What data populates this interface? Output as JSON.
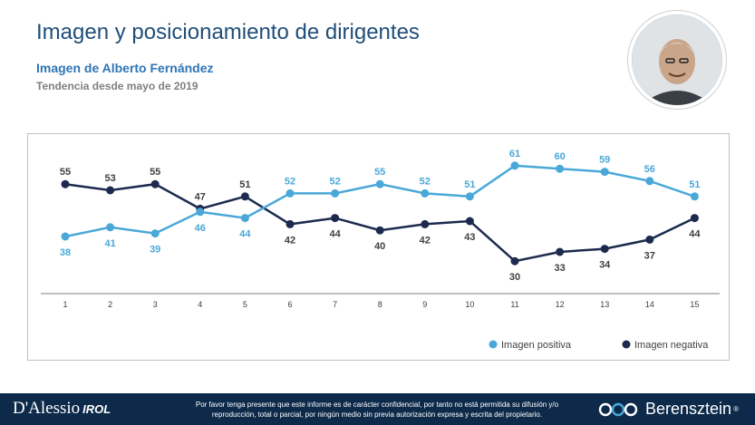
{
  "header": {
    "title": "Imagen y posicionamiento de dirigentes",
    "subtitle": "Imagen de Alberto Fernández",
    "subsubtitle": "Tendencia desde mayo de 2019"
  },
  "chart_data": {
    "type": "line",
    "x": [
      1,
      2,
      3,
      4,
      5,
      6,
      7,
      8,
      9,
      10,
      11,
      12,
      13,
      14,
      15
    ],
    "series": [
      {
        "name": "Imagen positiva",
        "color": "#4aa8d8",
        "values": [
          38,
          41,
          39,
          46,
          44,
          52,
          52,
          55,
          52,
          51,
          61,
          60,
          59,
          56,
          51
        ]
      },
      {
        "name": "Imagen negativa",
        "color": "#1c2a4e",
        "values": [
          55,
          53,
          55,
          47,
          51,
          42,
          44,
          40,
          42,
          43,
          30,
          33,
          34,
          37,
          44
        ]
      }
    ],
    "legend": "bottom-right",
    "grid": false
  },
  "footer": {
    "brand_left": "D'Alessio",
    "brand_left_sub": "IROL",
    "disclaimer_line1": "Por favor tenga presente que este informe es de carácter confidencial, por tanto no está permitida su difusión y/o",
    "disclaimer_line2": "reproducción, total o parcial, por ningún medio sin previa autorización expresa y escrita del propietario.",
    "brand_right": "Berensztein",
    "brand_right_mark": "®"
  },
  "colors": {
    "title": "#1f4e79",
    "subtitle": "#2e75b6",
    "footer_bg": "#0d2a4a"
  }
}
